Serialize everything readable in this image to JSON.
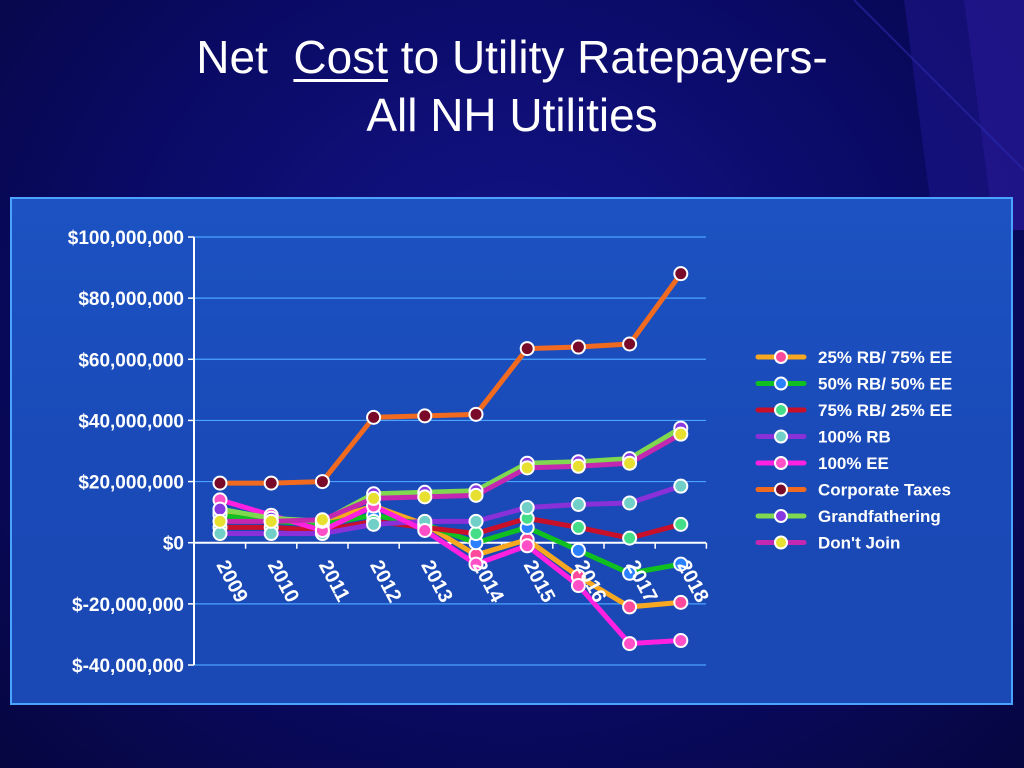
{
  "slide": {
    "title_line1_pre": "Net",
    "title_line1_underlined": "Cost",
    "title_line1_post": "to Utility Ratepayers-",
    "title_line2": "All NH Utilities"
  },
  "colors": {
    "background": "#0a0a66",
    "panel": "#1a4ab8",
    "panel_border": "#4aa3ff",
    "grid": "#4aa3ff"
  },
  "chart_data": {
    "type": "line",
    "title": "",
    "xlabel": "",
    "ylabel": "",
    "x": [
      "2009",
      "2010",
      "2011",
      "2012",
      "2013",
      "2014",
      "2015",
      "2016",
      "2017",
      "2018"
    ],
    "ylim": [
      -40000000,
      100000000
    ],
    "yticks": [
      100000000,
      80000000,
      60000000,
      40000000,
      20000000,
      0,
      -20000000,
      -40000000
    ],
    "ytick_labels": [
      "$100,000,000",
      "$80,000,000",
      "$60,000,000",
      "$40,000,000",
      "$20,000,000",
      "$0",
      "$-20,000,000",
      "$-40,000,000"
    ],
    "grid": true,
    "legend_position": "right",
    "series": [
      {
        "name": "25% RB/ 75% EE",
        "line_color": "#f7a820",
        "marker_color": "#ff4a9c",
        "values": [
          10000000,
          7000000,
          7000000,
          12000000,
          6000000,
          -4000000,
          1000000,
          -11000000,
          -21000000,
          -19500000
        ]
      },
      {
        "name": "50% RB/ 50% EE",
        "line_color": "#10c020",
        "marker_color": "#2a80ff",
        "values": [
          9000000,
          7000000,
          6000000,
          9000000,
          6000000,
          0,
          5000000,
          -2500000,
          -10000000,
          -7000000
        ]
      },
      {
        "name": "75% RB/ 25% EE",
        "line_color": "#c8102a",
        "marker_color": "#44dd88",
        "values": [
          5000000,
          5000000,
          4000000,
          7000000,
          5000000,
          3000000,
          8000000,
          5000000,
          1500000,
          6000000
        ]
      },
      {
        "name": "100% RB",
        "line_color": "#8a30d8",
        "marker_color": "#70d0c8",
        "values": [
          3000000,
          3000000,
          3000000,
          6000000,
          7000000,
          7000000,
          11500000,
          12500000,
          13000000,
          18500000
        ]
      },
      {
        "name": "100% EE",
        "line_color": "#ff20e0",
        "marker_color": "#ff50c8",
        "values": [
          14000000,
          9000000,
          4000000,
          12000000,
          4000000,
          -7000000,
          -1000000,
          -14000000,
          -33000000,
          -32000000
        ]
      },
      {
        "name": "Corporate Taxes",
        "line_color": "#f06a20",
        "marker_color": "#7a0a2a",
        "values": [
          19500000,
          19500000,
          20000000,
          41000000,
          41500000,
          42000000,
          63500000,
          64000000,
          65000000,
          88000000
        ]
      },
      {
        "name": "Grandfathering",
        "line_color": "#80d850",
        "marker_color": "#8838e0",
        "values": [
          11000000,
          8000000,
          7000000,
          16000000,
          16500000,
          17000000,
          26000000,
          26500000,
          27500000,
          37500000
        ]
      },
      {
        "name": "Don't Join",
        "line_color": "#c428b0",
        "marker_color": "#e8e030",
        "values": [
          7000000,
          7000000,
          7500000,
          14500000,
          15000000,
          15500000,
          24500000,
          25000000,
          26000000,
          35500000
        ]
      }
    ]
  }
}
